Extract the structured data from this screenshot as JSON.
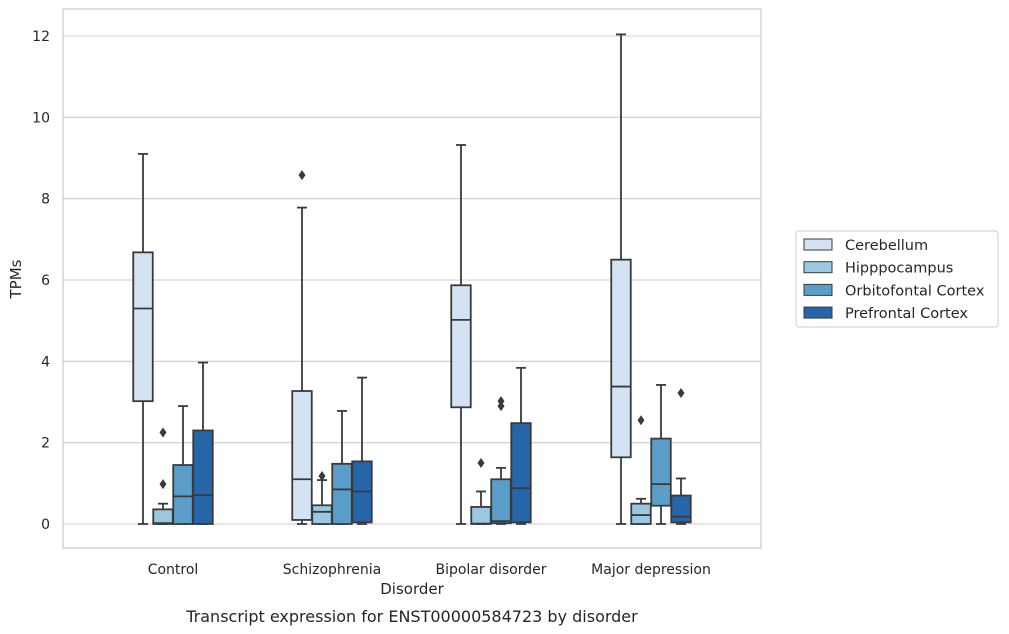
{
  "chart_data": {
    "type": "box",
    "caption": "Transcript expression for ENST00000584723 by disorder",
    "xlabel": "Disorder",
    "ylabel": "TPMs",
    "ylim": [
      -0.6,
      12.7
    ],
    "yticks": [
      0,
      2,
      4,
      6,
      8,
      10,
      12
    ],
    "ytick_labels": [
      "0",
      "2",
      "4",
      "6",
      "8",
      "10",
      "12"
    ],
    "grid": "horizontal",
    "legend_position": "right",
    "categories": [
      "Control",
      "Schizophrenia",
      "Bipolar disorder",
      "Major depression"
    ],
    "series": [
      {
        "name": "Cerebellum",
        "color": "#d3e3f3",
        "boxes": [
          {
            "min": 0,
            "q1": 3.02,
            "median": 5.3,
            "q3": 6.68,
            "max": 9.1,
            "outliers": []
          },
          {
            "min": 0,
            "q1": 0.1,
            "median": 1.1,
            "q3": 3.27,
            "max": 7.78,
            "outliers": [
              8.58
            ]
          },
          {
            "min": 0,
            "q1": 2.87,
            "median": 5.02,
            "q3": 5.87,
            "max": 9.32,
            "outliers": []
          },
          {
            "min": 0,
            "q1": 1.64,
            "median": 3.38,
            "q3": 6.5,
            "max": 12.04,
            "outliers": []
          }
        ]
      },
      {
        "name": "Hipppocampus",
        "color": "#9ac8e0",
        "boxes": [
          {
            "min": 0,
            "q1": 0,
            "median": 0.02,
            "q3": 0.36,
            "max": 0.5,
            "outliers": [
              0.98,
              2.25
            ]
          },
          {
            "min": 0,
            "q1": 0,
            "median": 0.3,
            "q3": 0.46,
            "max": 1.08,
            "outliers": [
              1.18
            ]
          },
          {
            "min": 0,
            "q1": 0,
            "median": 0.01,
            "q3": 0.42,
            "max": 0.8,
            "outliers": [
              1.5
            ]
          },
          {
            "min": 0,
            "q1": 0,
            "median": 0.22,
            "q3": 0.5,
            "max": 0.62,
            "outliers": [
              2.55
            ]
          }
        ]
      },
      {
        "name": "Orbitofontal Cortex",
        "color": "#5a9ec9",
        "boxes": [
          {
            "min": 0,
            "q1": 0,
            "median": 0.68,
            "q3": 1.45,
            "max": 2.9,
            "outliers": []
          },
          {
            "min": 0,
            "q1": 0,
            "median": 0.85,
            "q3": 1.48,
            "max": 2.78,
            "outliers": []
          },
          {
            "min": 0,
            "q1": 0.02,
            "median": 0.07,
            "q3": 1.1,
            "max": 1.38,
            "outliers": [
              2.9,
              3.02
            ]
          },
          {
            "min": 0,
            "q1": 0.45,
            "median": 0.98,
            "q3": 2.1,
            "max": 3.42,
            "outliers": []
          }
        ]
      },
      {
        "name": "Prefrontal Cortex",
        "color": "#2565a8",
        "boxes": [
          {
            "min": 0,
            "q1": 0,
            "median": 0.71,
            "q3": 2.3,
            "max": 3.97,
            "outliers": []
          },
          {
            "min": 0,
            "q1": 0.04,
            "median": 0.8,
            "q3": 1.54,
            "max": 3.6,
            "outliers": []
          },
          {
            "min": 0,
            "q1": 0.04,
            "median": 0.88,
            "q3": 2.48,
            "max": 3.84,
            "outliers": []
          },
          {
            "min": 0,
            "q1": 0.04,
            "median": 0.18,
            "q3": 0.7,
            "max": 1.12,
            "outliers": [
              3.22
            ]
          }
        ]
      }
    ]
  },
  "colors": {
    "edge": "#3a3a3a",
    "grid": "#cccccc",
    "frame": "#cccccc",
    "legend_border": "#cccccc"
  }
}
